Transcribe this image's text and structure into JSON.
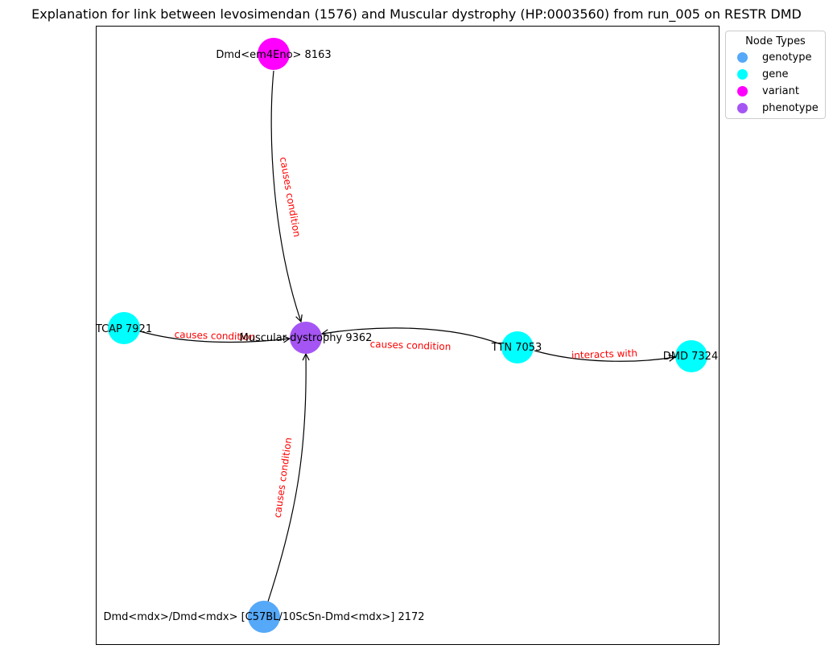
{
  "title": "Explanation for link between levosimendan (1576) and Muscular dystrophy (HP:0003560) from run_005 on RESTR DMD",
  "legend": {
    "title": "Node Types",
    "items": [
      {
        "label": "genotype",
        "color": "#56a8f8"
      },
      {
        "label": "gene",
        "color": "#00ffff"
      },
      {
        "label": "variant",
        "color": "#ff00ff"
      },
      {
        "label": "phenotype",
        "color": "#a555f3"
      }
    ]
  },
  "nodes": [
    {
      "id": "variant",
      "label": "Dmd<em4Eno> 8163",
      "type": "variant"
    },
    {
      "id": "tcap",
      "label": "TCAP 7921",
      "type": "gene"
    },
    {
      "id": "md",
      "label": "Muscular dystrophy 9362",
      "type": "phenotype"
    },
    {
      "id": "ttn",
      "label": "TTN 7053",
      "type": "gene"
    },
    {
      "id": "dmd",
      "label": "DMD 7324",
      "type": "gene"
    },
    {
      "id": "genotype",
      "label": "Dmd<mdx>/Dmd<mdx> [C57BL/10ScSn-Dmd<mdx>] 2172",
      "type": "genotype"
    }
  ],
  "edges": [
    {
      "from": "variant",
      "to": "md",
      "label": "causes condition"
    },
    {
      "from": "tcap",
      "to": "md",
      "label": "causes condition"
    },
    {
      "from": "ttn",
      "to": "md",
      "label": "causes condition"
    },
    {
      "from": "ttn",
      "to": "dmd",
      "label": "interacts with"
    },
    {
      "from": "genotype",
      "to": "md",
      "label": "causes condition"
    }
  ]
}
